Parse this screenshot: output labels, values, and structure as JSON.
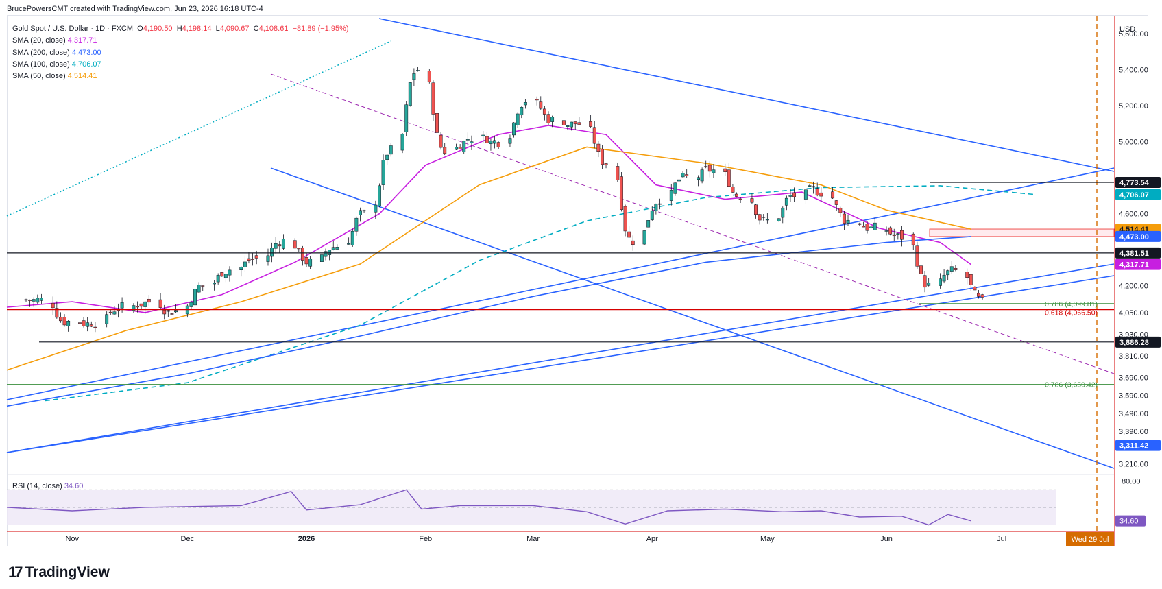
{
  "header": {
    "attribution": "BrucePowersCMT created with TradingView.com, Jun 23, 2026 16:18 UTC-4"
  },
  "brand": {
    "logo_text": "TradingView"
  },
  "legend": {
    "symbol": "Gold Spot / U.S. Dollar · 1D · FXCM",
    "ohlc": {
      "O": "4,190.50",
      "H": "4,198.14",
      "L": "4,090.67",
      "C": "4,108.61",
      "chg": "−81.89 (−1.95%)"
    },
    "sma": [
      {
        "label": "SMA (20, close)",
        "value": "4,317.71",
        "color": "#c71fe0"
      },
      {
        "label": "SMA (200, close)",
        "value": "4,473.00",
        "color": "#2962ff"
      },
      {
        "label": "SMA (100, close)",
        "value": "4,706.07",
        "color": "#00acc1"
      },
      {
        "label": "SMA (50, close)",
        "value": "4,514.41",
        "color": "#f59d0b"
      }
    ],
    "rsi": {
      "label": "RSI (14, close)",
      "value": "34.60",
      "color": "#7e57c2"
    }
  },
  "price_axis": {
    "currency": "USD",
    "ticks": [
      "5,600.00",
      "5,400.00",
      "5,200.00",
      "5,000.00",
      "4,600.00",
      "4,200.00",
      "4,050.00",
      "3,930.00",
      "3,810.00",
      "3,690.00",
      "3,590.00",
      "3,490.00",
      "3,390.00",
      "3,210.00"
    ],
    "badges": [
      {
        "text": "4,773.54",
        "bg": "#131722",
        "fg": "#ffffff"
      },
      {
        "text": "4,706.07",
        "bg": "#00acc1",
        "fg": "#ffffff"
      },
      {
        "text": "4,514.41",
        "bg": "#f59d0b",
        "fg": "#131722"
      },
      {
        "text": "4,473.00",
        "bg": "#2962ff",
        "fg": "#ffffff"
      },
      {
        "text": "4,381.51",
        "bg": "#131722",
        "fg": "#ffffff"
      },
      {
        "text": "4,317.71",
        "bg": "#c71fe0",
        "fg": "#ffffff"
      },
      {
        "text": "3,886.28",
        "bg": "#131722",
        "fg": "#ffffff"
      },
      {
        "text": "3,311.42",
        "bg": "#2962ff",
        "fg": "#ffffff"
      }
    ]
  },
  "rsi_axis": {
    "ticks": [
      "80.00"
    ],
    "badge": "34.60"
  },
  "time_axis": {
    "labels": [
      "Nov",
      "Dec",
      "2026",
      "Feb",
      "Mar",
      "Apr",
      "May",
      "Jun",
      "Jul"
    ],
    "cursor_label": "Wed 29 Jul"
  },
  "annotations": {
    "fib_618": "0.618 (4,066.50)",
    "fib_786_upper": "0.786 (4,099.81)",
    "fib_786_lower": "0.786 (3,650.42)"
  },
  "colors": {
    "up": "#26a69a",
    "down": "#ef5350",
    "trendline": "#2962ff",
    "support_red": "#d50000",
    "support_green": "#388e3c",
    "midline": "#9c27b0",
    "zone_fill": "#ffebee"
  },
  "chart_data": {
    "type": "candlestick",
    "timeframe": "1D",
    "ylim": [
      3150,
      5700
    ],
    "rsi_ylim": [
      25,
      85
    ],
    "closes_weekly_approx": [
      {
        "x": "2025-10-20",
        "y": 4120
      },
      {
        "x": "2025-10-27",
        "y": 4000
      },
      {
        "x": "2025-11-03",
        "y": 3995
      },
      {
        "x": "2025-11-10",
        "y": 4080
      },
      {
        "x": "2025-11-17",
        "y": 4110
      },
      {
        "x": "2025-11-24",
        "y": 4060
      },
      {
        "x": "2025-12-01",
        "y": 4200
      },
      {
        "x": "2025-12-08",
        "y": 4290
      },
      {
        "x": "2025-12-15",
        "y": 4350
      },
      {
        "x": "2025-12-22",
        "y": 4450
      },
      {
        "x": "2025-12-29",
        "y": 4330
      },
      {
        "x": "2026-01-05",
        "y": 4420
      },
      {
        "x": "2026-01-12",
        "y": 4600
      },
      {
        "x": "2026-01-19",
        "y": 4950
      },
      {
        "x": "2026-01-26",
        "y": 5400
      },
      {
        "x": "2026-02-02",
        "y": 4950
      },
      {
        "x": "2026-02-09",
        "y": 5020
      },
      {
        "x": "2026-02-16",
        "y": 5000
      },
      {
        "x": "2026-02-23",
        "y": 5230
      },
      {
        "x": "2026-03-02",
        "y": 5120
      },
      {
        "x": "2026-03-09",
        "y": 5100
      },
      {
        "x": "2026-03-16",
        "y": 4880
      },
      {
        "x": "2026-03-23",
        "y": 4450
      },
      {
        "x": "2026-03-30",
        "y": 4680
      },
      {
        "x": "2026-04-06",
        "y": 4800
      },
      {
        "x": "2026-04-13",
        "y": 4840
      },
      {
        "x": "2026-04-20",
        "y": 4700
      },
      {
        "x": "2026-04-27",
        "y": 4560
      },
      {
        "x": "2026-05-04",
        "y": 4700
      },
      {
        "x": "2026-05-11",
        "y": 4720
      },
      {
        "x": "2026-05-18",
        "y": 4560
      },
      {
        "x": "2026-05-25",
        "y": 4520
      },
      {
        "x": "2026-06-01",
        "y": 4470
      },
      {
        "x": "2026-06-08",
        "y": 4200
      },
      {
        "x": "2026-06-15",
        "y": 4280
      },
      {
        "x": "2026-06-22",
        "y": 4108.61
      }
    ],
    "horizontal_levels": [
      4773.54,
      4381.51,
      4066.5,
      4099.81,
      3886.28,
      3650.42
    ],
    "resistance_zone": [
      4473.0,
      4514.41
    ],
    "sma_last": {
      "sma20": 4317.71,
      "sma50": 4514.41,
      "sma100": 4706.07,
      "sma200": 4473.0
    },
    "rsi_last": 34.6
  }
}
